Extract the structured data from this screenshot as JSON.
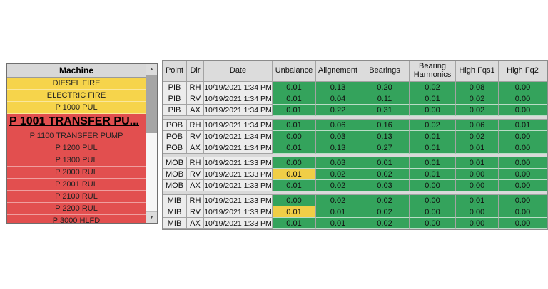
{
  "machine_panel": {
    "header": "Machine",
    "items": [
      {
        "label": "DIESEL FIRE",
        "color": "yellow",
        "selected": false,
        "partial": false
      },
      {
        "label": "ELECTRIC FIRE",
        "color": "yellow",
        "selected": false,
        "partial": false
      },
      {
        "label": "P 1000 PUL",
        "color": "yellow",
        "selected": false,
        "partial": false
      },
      {
        "label": "P 1001 TRANSFER PU...",
        "color": "red",
        "selected": true,
        "partial": false
      },
      {
        "label": "P 1100 TRANSFER PUMP",
        "color": "red",
        "selected": false,
        "partial": false
      },
      {
        "label": "P 1200 PUL",
        "color": "red",
        "selected": false,
        "partial": false
      },
      {
        "label": "P 1300 PUL",
        "color": "red",
        "selected": false,
        "partial": false
      },
      {
        "label": "P 2000 RUL",
        "color": "red",
        "selected": false,
        "partial": false
      },
      {
        "label": "P 2001 RUL",
        "color": "red",
        "selected": false,
        "partial": false
      },
      {
        "label": "P 2100 RUL",
        "color": "red",
        "selected": false,
        "partial": false
      },
      {
        "label": "P 2200 RUL",
        "color": "red",
        "selected": false,
        "partial": false
      },
      {
        "label": "P 3000 HLFD",
        "color": "red",
        "selected": false,
        "partial": true
      }
    ]
  },
  "measurement_table": {
    "columns": [
      "Point",
      "Dir",
      "Date",
      "Unbalance",
      "Alignement",
      "Bearings",
      "Bearing Harmonics",
      "High Fqs1",
      "High Fq2"
    ],
    "rows": [
      {
        "point": "PIB",
        "dir": "RH",
        "date": "10/19/2021 1:34 PM",
        "values": [
          "0.01",
          "0.13",
          "0.20",
          "0.02",
          "0.08",
          "0.00"
        ],
        "value_colors": [
          "g",
          "g",
          "g",
          "g",
          "g",
          "g"
        ]
      },
      {
        "point": "PIB",
        "dir": "RV",
        "date": "10/19/2021 1:34 PM",
        "values": [
          "0.01",
          "0.04",
          "0.11",
          "0.01",
          "0.02",
          "0.00"
        ],
        "value_colors": [
          "g",
          "g",
          "g",
          "g",
          "g",
          "g"
        ]
      },
      {
        "point": "PIB",
        "dir": "AX",
        "date": "10/19/2021 1:34 PM",
        "values": [
          "0.01",
          "0.22",
          "0.31",
          "0.00",
          "0.02",
          "0.00"
        ],
        "value_colors": [
          "g",
          "g",
          "g",
          "g",
          "g",
          "g"
        ]
      },
      {
        "point": "POB",
        "dir": "RH",
        "date": "10/19/2021 1:34 PM",
        "values": [
          "0.01",
          "0.06",
          "0.16",
          "0.02",
          "0.06",
          "0.01"
        ],
        "value_colors": [
          "g",
          "g",
          "g",
          "g",
          "g",
          "g"
        ]
      },
      {
        "point": "POB",
        "dir": "RV",
        "date": "10/19/2021 1:34 PM",
        "values": [
          "0.00",
          "0.03",
          "0.13",
          "0.01",
          "0.02",
          "0.00"
        ],
        "value_colors": [
          "g",
          "g",
          "g",
          "g",
          "g",
          "g"
        ]
      },
      {
        "point": "POB",
        "dir": "AX",
        "date": "10/19/2021 1:34 PM",
        "values": [
          "0.01",
          "0.13",
          "0.27",
          "0.01",
          "0.01",
          "0.00"
        ],
        "value_colors": [
          "g",
          "g",
          "g",
          "g",
          "g",
          "g"
        ]
      },
      {
        "point": "MOB",
        "dir": "RH",
        "date": "10/19/2021 1:33 PM",
        "values": [
          "0.00",
          "0.03",
          "0.01",
          "0.01",
          "0.01",
          "0.00"
        ],
        "value_colors": [
          "g",
          "g",
          "g",
          "g",
          "g",
          "g"
        ]
      },
      {
        "point": "MOB",
        "dir": "RV",
        "date": "10/19/2021 1:33 PM",
        "values": [
          "0.01",
          "0.02",
          "0.02",
          "0.01",
          "0.00",
          "0.00"
        ],
        "value_colors": [
          "y",
          "g",
          "g",
          "g",
          "g",
          "g"
        ]
      },
      {
        "point": "MOB",
        "dir": "AX",
        "date": "10/19/2021 1:33 PM",
        "values": [
          "0.01",
          "0.02",
          "0.03",
          "0.00",
          "0.00",
          "0.00"
        ],
        "value_colors": [
          "g",
          "g",
          "g",
          "g",
          "g",
          "g"
        ]
      },
      {
        "point": "MIB",
        "dir": "RH",
        "date": "10/19/2021 1:33 PM",
        "values": [
          "0.00",
          "0.02",
          "0.02",
          "0.00",
          "0.01",
          "0.00"
        ],
        "value_colors": [
          "g",
          "g",
          "g",
          "g",
          "g",
          "g"
        ]
      },
      {
        "point": "MIB",
        "dir": "RV",
        "date": "10/19/2021 1:33 PM",
        "values": [
          "0.01",
          "0.01",
          "0.02",
          "0.00",
          "0.00",
          "0.00"
        ],
        "value_colors": [
          "y",
          "g",
          "g",
          "g",
          "g",
          "g"
        ]
      },
      {
        "point": "MIB",
        "dir": "AX",
        "date": "10/19/2021 1:33 PM",
        "values": [
          "0.01",
          "0.01",
          "0.02",
          "0.00",
          "0.00",
          "0.00"
        ],
        "value_colors": [
          "g",
          "g",
          "g",
          "g",
          "g",
          "g"
        ]
      }
    ]
  },
  "scrollbar": {
    "up_arrow": "▲",
    "down_arrow": "▼"
  },
  "colors": {
    "ok_green": "#34A35C",
    "warn_yellow": "#F0CE47",
    "machine_yellow": "#F6D44B",
    "machine_red": "#E24F4F"
  }
}
